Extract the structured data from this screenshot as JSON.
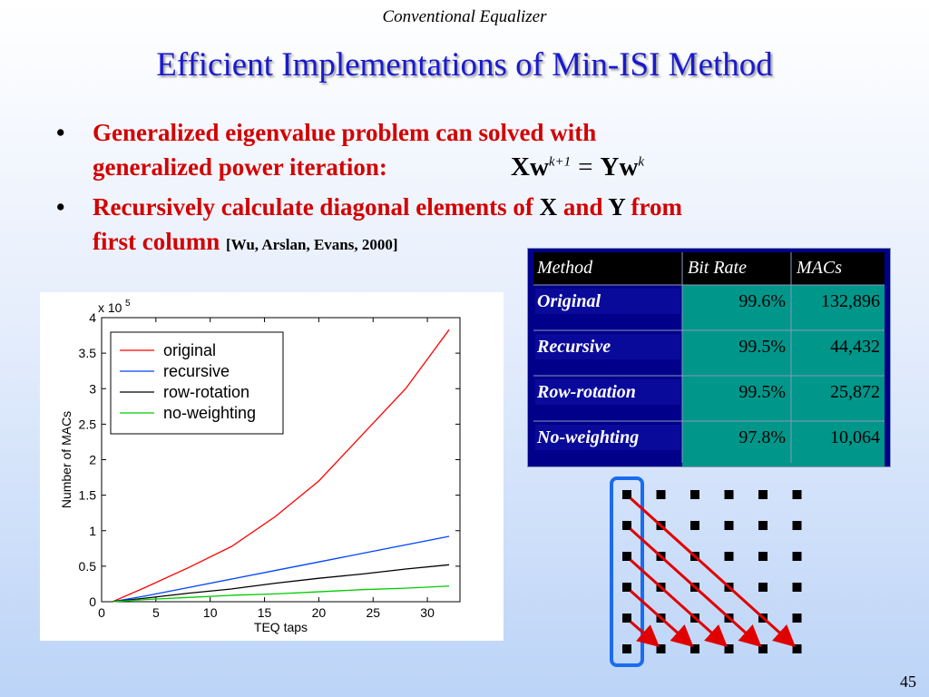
{
  "slide": {
    "header": "Conventional Equalizer",
    "title": "Efficient Implementations of Min-ISI Method",
    "page_number": "45"
  },
  "bullets": [
    {
      "line1": "Generalized eigenvalue problem can solved with",
      "line2": "generalized power iteration:"
    },
    {
      "part1": "Recursively calculate diagonal elements of ",
      "x": "X",
      "and": " and ",
      "y": "Y",
      "part2": " from",
      "line2": "first column ",
      "citation": "[Wu, Arslan, Evans, 2000]"
    }
  ],
  "equation": {
    "lhs": "Xw",
    "lhs_sup": "k+1",
    "eq": "=",
    "rhs": "Yw",
    "rhs_sup": "k"
  },
  "table": {
    "headers": [
      "Method",
      "Bit Rate",
      "MACs"
    ],
    "rows": [
      [
        "Original",
        "99.6%",
        "132,896"
      ],
      [
        "Recursive",
        "99.5%",
        "44,432"
      ],
      [
        "Row-rotation",
        "99.5%",
        "25,872"
      ],
      [
        "No-weighting",
        "97.8%",
        "10,064"
      ]
    ]
  },
  "chart_data": {
    "type": "line",
    "xlabel": "TEQ taps",
    "ylabel": "Number of MACs",
    "yscale_label": "x 10",
    "yscale_exp": "5",
    "xlim": [
      0,
      33
    ],
    "ylim": [
      0,
      4
    ],
    "xticks": [
      0,
      5,
      10,
      15,
      20,
      25,
      30
    ],
    "yticks": [
      0,
      0.5,
      1,
      1.5,
      2,
      2.5,
      3,
      3.5,
      4
    ],
    "x": [
      1,
      4,
      8,
      12,
      16,
      20,
      24,
      28,
      32
    ],
    "series": [
      {
        "name": "original",
        "color": "#ff0000",
        "values": [
          0.0,
          0.2,
          0.48,
          0.78,
          1.2,
          1.7,
          2.35,
          3.0,
          3.83
        ]
      },
      {
        "name": "recursive",
        "color": "#0044ff",
        "values": [
          0.0,
          0.08,
          0.2,
          0.32,
          0.44,
          0.56,
          0.68,
          0.8,
          0.92
        ]
      },
      {
        "name": "row-rotation",
        "color": "#000000",
        "values": [
          0.0,
          0.05,
          0.12,
          0.18,
          0.26,
          0.33,
          0.39,
          0.46,
          0.52
        ]
      },
      {
        "name": "no-weighting",
        "color": "#00cc00",
        "values": [
          0.0,
          0.03,
          0.06,
          0.09,
          0.11,
          0.14,
          0.17,
          0.19,
          0.22
        ]
      }
    ],
    "legend_position": "top-left",
    "grid": false
  },
  "matrix_diagram": {
    "rows": 6,
    "cols": 6,
    "box_color": "#1a6cf0",
    "arrow_color": "#e00000"
  }
}
